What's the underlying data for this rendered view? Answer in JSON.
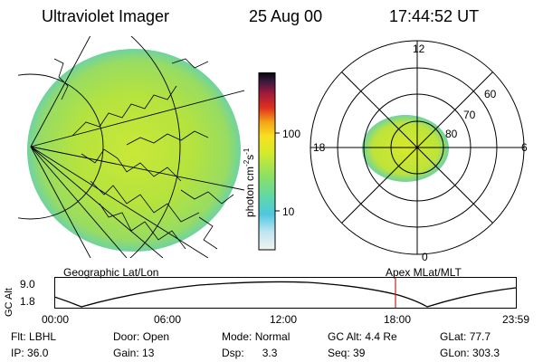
{
  "header": {
    "title": "Ultraviolet Imager",
    "date": "25 Aug 00",
    "time": "17:44:52 UT"
  },
  "left_panel": {
    "caption": "Geographic Lat/Lon"
  },
  "colorbar": {
    "label_main": "photon cm",
    "label_exp1": "-2",
    "label_mid": "s",
    "label_exp2": "-1",
    "ticks": [
      "100",
      "10"
    ]
  },
  "polar_plot": {
    "caption": "Apex MLat/MLT",
    "mlt_labels": {
      "top": "12",
      "left": "18",
      "right": "6",
      "bottom": "0"
    },
    "lat_labels": [
      "60",
      "70",
      "80"
    ]
  },
  "altitude_chart": {
    "ylabel": "GC Alt",
    "y_ticks": [
      "9.0",
      "1.8"
    ],
    "x_ticks": [
      "00:00",
      "06:00",
      "12:00",
      "18:00",
      "23:59"
    ],
    "marker_time": "17:44"
  },
  "info": {
    "row1": [
      {
        "label": "Flt:",
        "value": "LBHL"
      },
      {
        "label": "Door:",
        "value": "Open"
      },
      {
        "label": "Mode:",
        "value": "Normal"
      },
      {
        "label": "GC Alt:",
        "value": "4.4 Re"
      },
      {
        "label": "GLat:",
        "value": "77.7"
      }
    ],
    "row2": [
      {
        "label": "IP:",
        "value": "36.0"
      },
      {
        "label": "Gain:",
        "value": "13"
      },
      {
        "label": "Dsp:",
        "value": "3.3"
      },
      {
        "label": "Seq:",
        "value": "39"
      },
      {
        "label": "GLon:",
        "value": "303.3"
      }
    ]
  },
  "colors": {
    "image_main": "#b7e23c",
    "image_edge": "#7fd98a",
    "marker": "#d21f1f"
  }
}
